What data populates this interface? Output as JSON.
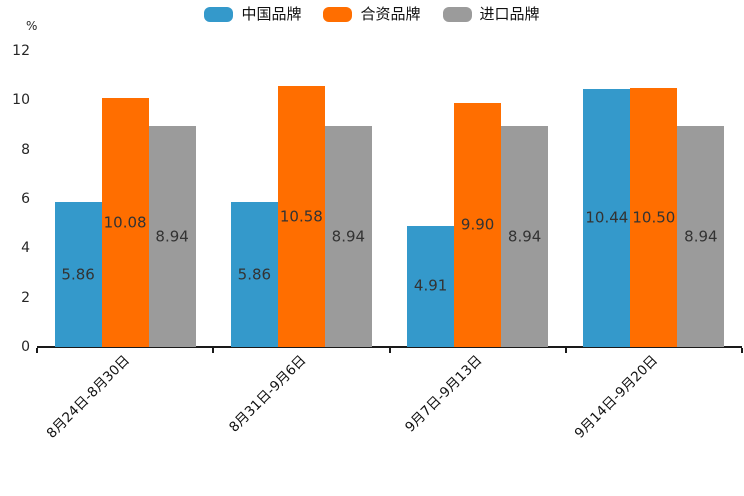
{
  "chart_data": {
    "type": "bar",
    "title": "",
    "unit_label": "%",
    "categories": [
      "8月24日-8月30日",
      "8月31日-9月6日",
      "9月7日-9月13日",
      "9月14日-9月20日"
    ],
    "series": [
      {
        "name": "中国品牌",
        "color": "#3499cb",
        "values": [
          5.86,
          5.86,
          4.91,
          10.44
        ]
      },
      {
        "name": "合资品牌",
        "color": "#ff6e00",
        "values": [
          10.08,
          10.58,
          9.9,
          10.5
        ]
      },
      {
        "name": "进口品牌",
        "color": "#9b9b9b",
        "values": [
          8.94,
          8.94,
          8.94,
          8.94
        ]
      }
    ],
    "value_label_decimals": 2,
    "ylim": [
      0,
      12
    ],
    "y_ticks": [
      0,
      2,
      4,
      6,
      8,
      10,
      12
    ],
    "legend_position": "top",
    "grid": false,
    "x_labels_rotation_deg": 45,
    "colors": {
      "axis": "#1a1a1a",
      "tick_label": "#262626",
      "value_label": "#333333",
      "background": "#ffffff"
    }
  }
}
